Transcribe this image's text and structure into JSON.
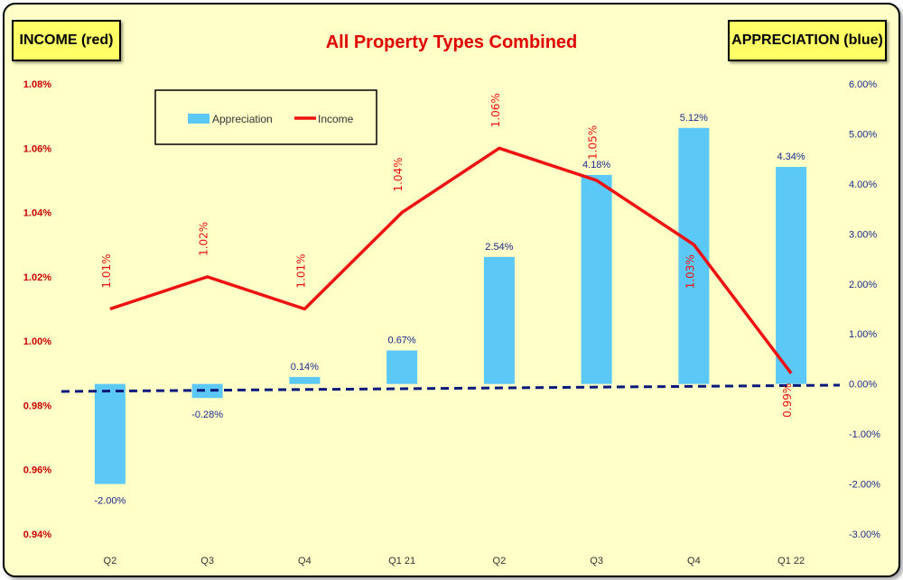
{
  "tags": {
    "left": "INCOME (red)",
    "right": "APPRECIATION (blue)"
  },
  "colors": {
    "income": "#ee1111",
    "appreciation": "#5bc8f5",
    "left_axis": "#cc0000",
    "right_axis": "#1a2a8a",
    "dashed": "#0a1a7a"
  },
  "chart_data": {
    "type": "bar",
    "title": "All Property Types Combined",
    "categories": [
      "Q2",
      "Q3",
      "Q4",
      "Q1 21",
      "Q2",
      "Q3",
      "Q4",
      "Q1 22"
    ],
    "series": [
      {
        "name": "Appreciation",
        "type": "bar",
        "axis": "right",
        "values": [
          -2.0,
          -0.28,
          0.14,
          0.67,
          2.54,
          4.18,
          5.12,
          4.34
        ],
        "labels": [
          "-2.00%",
          "-0.28%",
          "0.14%",
          "0.67%",
          "2.54%",
          "4.18%",
          "5.12%",
          "4.34%"
        ]
      },
      {
        "name": "Income",
        "type": "line",
        "axis": "left",
        "values": [
          1.01,
          1.02,
          1.01,
          1.04,
          1.06,
          1.05,
          1.03,
          0.99
        ],
        "labels": [
          "1.01%",
          "1.02%",
          "1.01%",
          "1.04%",
          "1.06%",
          "1.05%",
          "1.03%",
          "0.99%"
        ]
      }
    ],
    "left_axis": {
      "ylim": [
        0.94,
        1.08
      ],
      "ticks": [
        "0.94%",
        "0.96%",
        "0.98%",
        "1.00%",
        "1.02%",
        "1.04%",
        "1.06%",
        "1.08%"
      ]
    },
    "right_axis": {
      "ylim": [
        -3.0,
        6.0
      ],
      "ticks": [
        "-3.00%",
        "-2.00%",
        "-1.00%",
        "0.00%",
        "1.00%",
        "2.00%",
        "3.00%",
        "4.00%",
        "5.00%",
        "6.00%"
      ]
    },
    "legend": {
      "placement": "top-left",
      "items": [
        "Appreciation",
        "Income"
      ]
    },
    "grid": false
  }
}
